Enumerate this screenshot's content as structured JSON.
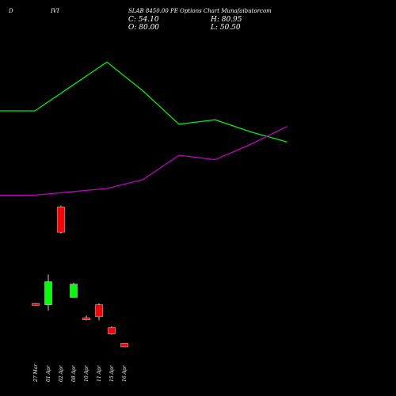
{
  "header": {
    "left": "D",
    "middle": "IVI",
    "title": "SLAB 8450.00 PE Options Chart Munafaibutorcom"
  },
  "ohlc": {
    "close": "C: 54.10",
    "high": "H: 80.95",
    "open": "O: 80.00",
    "low": "L: 50.50"
  },
  "colors": {
    "background": "#000000",
    "up": "#00ff00",
    "down": "#ff0000",
    "green_line": "#00ee00",
    "purple_line": "#c000c0"
  },
  "chart_data": {
    "type": "candlestick",
    "x_labels": [
      "27 Mar",
      "01 Apr",
      "02 Apr",
      "08 Apr",
      "10 Apr",
      "11 Apr",
      "15 Apr",
      "16 Apr"
    ],
    "candles": [
      {
        "date": "27 Mar",
        "open": 180,
        "high": 182,
        "low": 173,
        "close": 172,
        "color": "down"
      },
      {
        "date": "01 Apr",
        "open": 175,
        "high": 300,
        "low": 150,
        "close": 270,
        "color": "up"
      },
      {
        "date": "02 Apr",
        "open": 580,
        "high": 585,
        "low": 470,
        "close": 475,
        "color": "down"
      },
      {
        "date": "08 Apr",
        "open": 205,
        "high": 265,
        "low": 205,
        "close": 260,
        "color": "up"
      },
      {
        "date": "10 Apr",
        "open": 120,
        "high": 130,
        "low": 110,
        "close": 112,
        "color": "down"
      },
      {
        "date": "11 Apr",
        "open": 175,
        "high": 180,
        "low": 110,
        "close": 125,
        "color": "down"
      },
      {
        "date": "15 Apr",
        "open": 80,
        "high": 85,
        "low": 50,
        "close": 54,
        "color": "down"
      },
      {
        "date": "16 Apr",
        "open": 15,
        "high": 15,
        "low": 0,
        "close": 0,
        "color": "down"
      }
    ],
    "lines": [
      {
        "color": "green",
        "values": [
          1000,
          1000,
          1110,
          1220,
          1090,
          940,
          960,
          905,
          860
        ]
      },
      {
        "color": "purple",
        "values": [
          620,
          620,
          635,
          650,
          690,
          800,
          780,
          850,
          930
        ]
      }
    ]
  }
}
